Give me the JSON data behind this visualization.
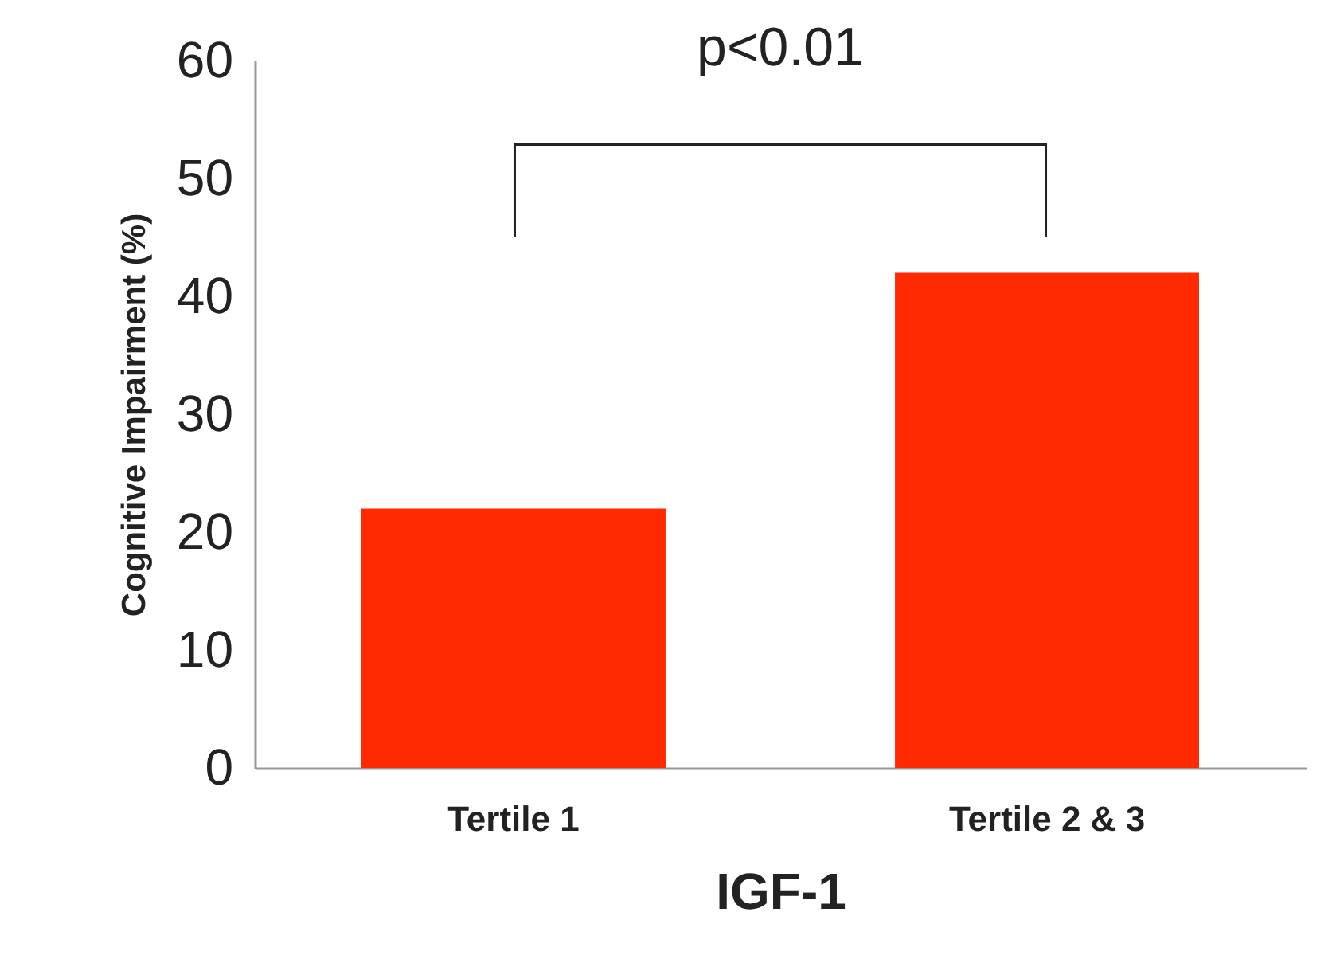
{
  "chart_data": {
    "type": "bar",
    "xlabel": "IGF-1",
    "ylabel": "Cognitive Impairment (%)",
    "categories": [
      "Tertile 1",
      "Tertile 2 & 3"
    ],
    "values": [
      22,
      42
    ],
    "color": "#ff2a00",
    "ylim": [
      0,
      60
    ],
    "yticks": [
      0,
      10,
      20,
      30,
      40,
      50,
      60
    ],
    "grid": false,
    "annotations": [
      "p<0.01"
    ]
  }
}
